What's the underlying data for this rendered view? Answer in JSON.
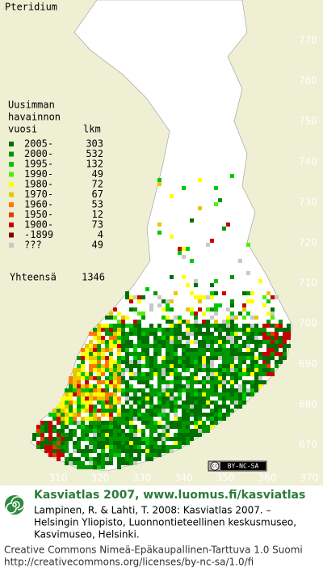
{
  "title": "Pteridium",
  "legend": {
    "header": [
      "Uusimman",
      "havainnon",
      "vuosi"
    ],
    "count_header": "lkm",
    "items": [
      {
        "label": "2005-",
        "count": 303,
        "color": "#006e00"
      },
      {
        "label": "2000-",
        "count": 532,
        "color": "#009600"
      },
      {
        "label": "1995-",
        "count": 132,
        "color": "#00c800"
      },
      {
        "label": "1990-",
        "count": 49,
        "color": "#50f000"
      },
      {
        "label": "1980-",
        "count": 72,
        "color": "#ffff00"
      },
      {
        "label": "1970-",
        "count": 67,
        "color": "#e6c800"
      },
      {
        "label": "1960-",
        "count": 53,
        "color": "#ff7800"
      },
      {
        "label": "1950-",
        "count": 12,
        "color": "#e63c00"
      },
      {
        "label": "1900-",
        "count": 73,
        "color": "#c80000"
      },
      {
        "label": "-1899",
        "count": 4,
        "color": "#820000"
      },
      {
        "label": "???",
        "count": 49,
        "color": "#c8c8c8"
      }
    ],
    "total_label": "Yhteensä",
    "total": 1346
  },
  "northing_labels": [
    770,
    760,
    750,
    740,
    730,
    720,
    710,
    700,
    690,
    680,
    670
  ],
  "easting_labels": [
    310,
    320,
    330,
    340,
    350,
    360,
    370
  ],
  "license_badge": {
    "cc": "cc",
    "text": "BY-NC-SA"
  },
  "footer": {
    "heading": "Kasviatlas 2007, www.luomus.fi/kasviatlas",
    "citation": [
      "Lampinen, R. & Lahti, T. 2008: Kasviatlas 2007. –",
      "Helsingin Yliopisto, Luonnontieteellinen keskusmuseo,",
      "Kasvimuseo, Helsinki."
    ],
    "license": [
      "Creative Commons Nimeä-Epäkaupallinen-Tarttuva 1.0 Suomi",
      "http://creativecommons.org/licenses/by-nc-sa/1.0/fi"
    ]
  }
}
